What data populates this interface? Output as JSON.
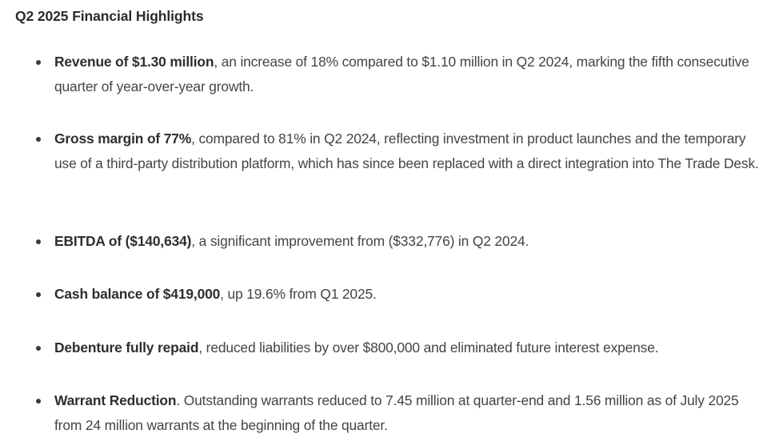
{
  "document": {
    "title": "Q2 2025 Financial Highlights",
    "items": [
      {
        "lead": "Revenue of $1.30 million",
        "rest": ", an increase of 18% compared to $1.10 million in Q2 2024, marking the fifth consecutive quarter of year-over-year growth."
      },
      {
        "lead": "Gross margin of 77%",
        "rest": ", compared to 81% in Q2 2024, reflecting investment in product launches and the temporary use of a third-party distribution platform, which has since been replaced with a direct integration into The Trade Desk."
      },
      {
        "lead": "EBITDA of ($140,634)",
        "rest": ", a significant improvement from ($332,776) in Q2 2024."
      },
      {
        "lead": "Cash balance of $419,000",
        "rest": ", up 19.6% from Q1 2025."
      },
      {
        "lead": "Debenture fully repaid",
        "rest": ", reduced liabilities by over $800,000 and eliminated future interest expense."
      },
      {
        "lead": "Warrant Reduction",
        "rest": ". Outstanding warrants reduced to 7.45 million at quarter-end and 1.56 million as of July 2025 from 24 million warrants at the beginning of the quarter."
      }
    ]
  }
}
